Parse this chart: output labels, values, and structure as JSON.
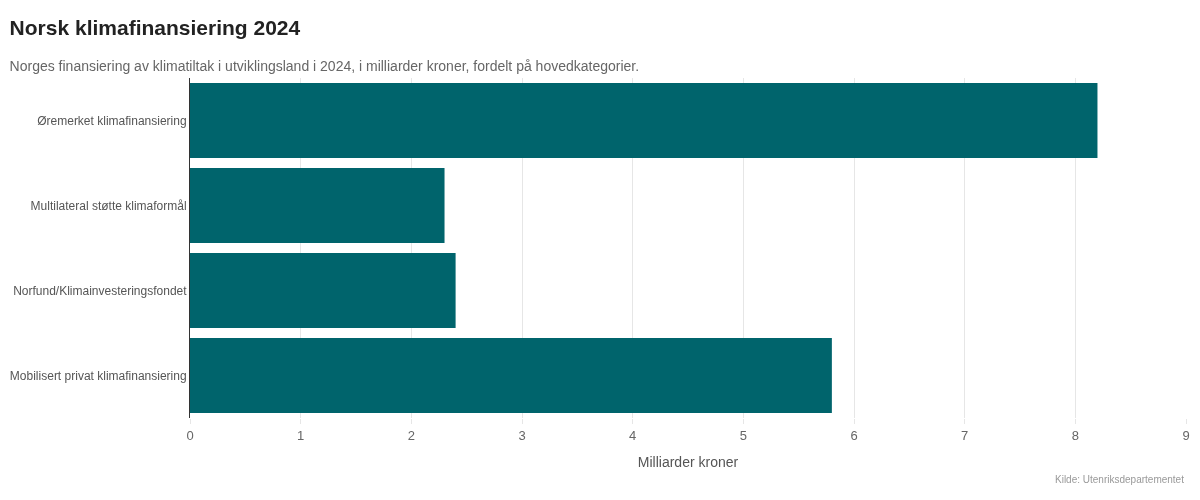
{
  "chart_data": {
    "type": "bar",
    "orientation": "horizontal",
    "title": "Norsk klimafinansiering 2024",
    "subtitle": "Norges finansiering av klimatiltak i utviklingsland i 2024, i milliarder kroner, fordelt på hovedkategorier.",
    "xlabel": "Milliarder kroner",
    "categories": [
      "Øremerket klimafinansiering",
      "Multilateral støtte klimaformål",
      "Norfund/Klimainvesteringsfondet",
      "Mobilisert privat klimafinansiering"
    ],
    "values": [
      8.2,
      2.3,
      2.4,
      5.8
    ],
    "color": "#00646c",
    "xlim": [
      0,
      9
    ],
    "xticks": [
      0,
      1,
      2,
      3,
      4,
      5,
      6,
      7,
      8,
      9
    ],
    "grid": "x",
    "annotations": [
      "Kilde: Utenriksdepartementet"
    ]
  }
}
